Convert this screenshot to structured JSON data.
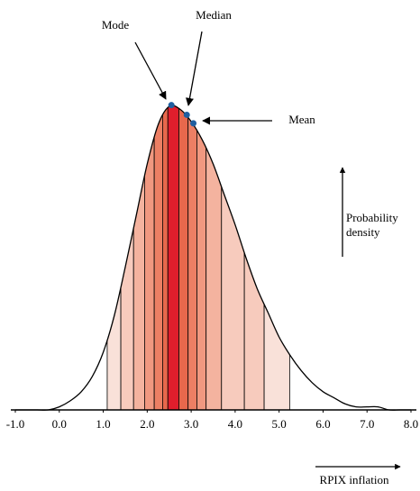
{
  "chart_data": {
    "type": "density",
    "x": [
      -1,
      -0.75,
      -0.5,
      -0.25,
      0,
      0.25,
      0.5,
      0.75,
      1,
      1.25,
      1.5,
      1.75,
      2,
      2.25,
      2.5,
      2.75,
      3,
      3.25,
      3.5,
      3.75,
      4,
      4.25,
      4.5,
      4.75,
      5,
      5.25,
      5.5,
      5.75,
      6,
      6.25,
      6.5,
      6.75,
      7,
      7.25,
      7.5,
      7.75,
      8
    ],
    "values": [
      0,
      0,
      0,
      0,
      0.01,
      0.03,
      0.06,
      0.11,
      0.19,
      0.31,
      0.47,
      0.64,
      0.81,
      0.94,
      1,
      0.99,
      0.95,
      0.89,
      0.81,
      0.71,
      0.61,
      0.5,
      0.4,
      0.32,
      0.24,
      0.18,
      0.13,
      0.09,
      0.06,
      0.04,
      0.02,
      0.01,
      0.01,
      0.01,
      0,
      0,
      0
    ],
    "color": "#000000",
    "xlim": [
      -1,
      8
    ],
    "ylim": [
      0,
      1
    ],
    "xticks": [
      {
        "value": -1,
        "label": "-1.0"
      },
      {
        "value": 0,
        "label": "0.0"
      },
      {
        "value": 1,
        "label": "1.0"
      },
      {
        "value": 2,
        "label": "2.0"
      },
      {
        "value": 3,
        "label": "3.0"
      },
      {
        "value": 4,
        "label": "4.0"
      },
      {
        "value": 5,
        "label": "5.0"
      },
      {
        "value": 6,
        "label": "6.0"
      },
      {
        "value": 7,
        "label": "7.0"
      },
      {
        "value": 8,
        "label": "8.0"
      }
    ],
    "bands": [
      {
        "from": 1.09,
        "to": 1.4,
        "color": "#f9e1d9"
      },
      {
        "from": 1.4,
        "to": 1.69,
        "color": "#f7cbbd"
      },
      {
        "from": 1.69,
        "to": 1.94,
        "color": "#f4b39f"
      },
      {
        "from": 1.94,
        "to": 2.16,
        "color": "#f09880"
      },
      {
        "from": 2.16,
        "to": 2.35,
        "color": "#ec7f64"
      },
      {
        "from": 2.35,
        "to": 2.47,
        "color": "#e8684c"
      },
      {
        "from": 2.47,
        "to": 2.72,
        "color": "#e01e2c"
      },
      {
        "from": 2.72,
        "to": 2.93,
        "color": "#e8684c"
      },
      {
        "from": 2.93,
        "to": 3.13,
        "color": "#ec7f64"
      },
      {
        "from": 3.13,
        "to": 3.34,
        "color": "#f09880"
      },
      {
        "from": 3.34,
        "to": 3.69,
        "color": "#f4b39f"
      },
      {
        "from": 3.69,
        "to": 4.21,
        "color": "#f7cbbd"
      },
      {
        "from": 4.21,
        "to": 4.66,
        "color": "#f7cbbd"
      },
      {
        "from": 4.66,
        "to": 5.24,
        "color": "#f9e1d9"
      }
    ],
    "annotations": [
      {
        "text": "Mode",
        "x": 2.55
      },
      {
        "text": "Median",
        "x": 2.9
      },
      {
        "text": "Mean",
        "x": 3.05
      }
    ],
    "marker_color": "#1f5fa0",
    "y_label": "Probability density",
    "x_label": "RPIX inflation"
  }
}
